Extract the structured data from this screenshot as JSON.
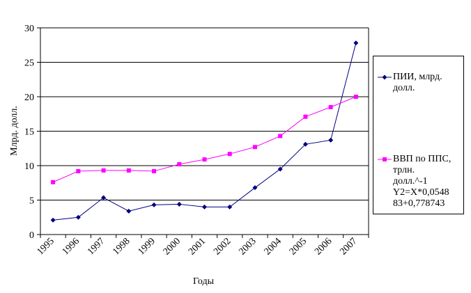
{
  "chart_data": {
    "type": "line",
    "x_label": "Годы",
    "y_label": "Млрд. долл.",
    "categories": [
      "1995",
      "1996",
      "1997",
      "1998",
      "1999",
      "2000",
      "2001",
      "2002",
      "2003",
      "2004",
      "2005",
      "2006",
      "2007"
    ],
    "series": [
      {
        "name": "ПИИ, млрд. долл.",
        "color": "#000080",
        "marker": "diamond",
        "values": [
          2.1,
          2.5,
          5.35,
          3.4,
          4.3,
          4.4,
          4.0,
          4.0,
          6.8,
          9.5,
          13.1,
          13.7,
          27.8
        ]
      },
      {
        "name": "ВВП по ППС, трлн. долл.^-1 Y2=X*0,054883+0,778743",
        "color": "#ff00ff",
        "marker": "square",
        "values": [
          7.6,
          9.2,
          9.3,
          9.3,
          9.2,
          10.2,
          10.9,
          11.7,
          12.7,
          14.3,
          17.1,
          18.5,
          20.0
        ]
      }
    ],
    "ylim": [
      0,
      30
    ],
    "yticks": [
      0,
      5,
      10,
      15,
      20,
      25,
      30
    ],
    "grid": true,
    "legend": "right"
  }
}
